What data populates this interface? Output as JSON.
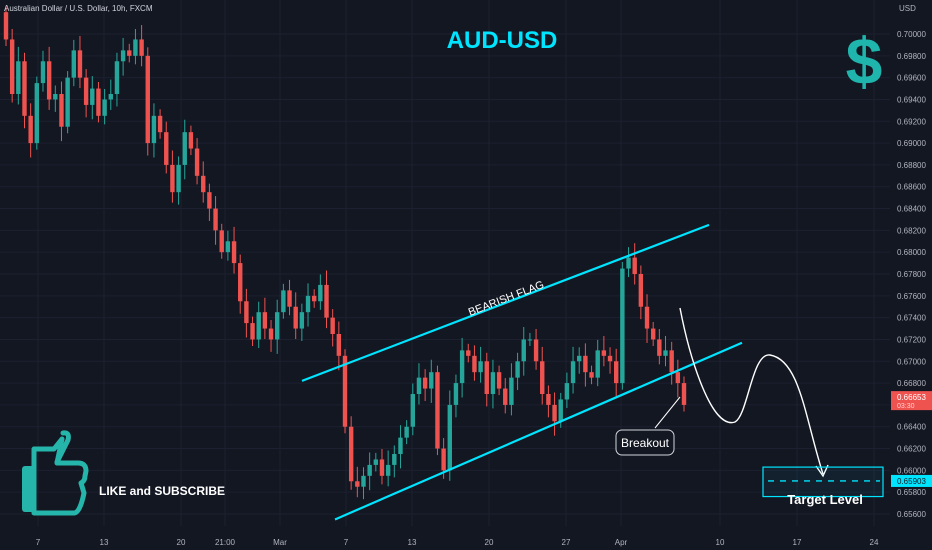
{
  "header": {
    "symbol_line": "Australian Dollar / U.S. Dollar, 10h, FXCM",
    "currency": "USD"
  },
  "idea": {
    "title": "AUD-USD",
    "flag_label": "BEARISH FLAG",
    "breakout_label": "Breakout",
    "target_label": "Target Level",
    "cta": "LIKE and SUBSCRIBE",
    "logo_icon": "dollar-icon",
    "cta_icon": "thumbs-up-icon"
  },
  "colors": {
    "background": "#131722",
    "bull": "#26a69a",
    "bear": "#ef5350",
    "accent": "#00e5ff",
    "text": "#b2b5be"
  },
  "price_badges": {
    "last_price": "0.66653",
    "countdown": "03:30",
    "target_price": "0.65903"
  },
  "chart_data": {
    "type": "candlestick",
    "symbol": "AUDUSD",
    "timeframe": "10h",
    "y_ticks": [
      "0.70000",
      "0.69800",
      "0.69600",
      "0.69400",
      "0.69200",
      "0.69000",
      "0.68800",
      "0.68600",
      "0.68400",
      "0.68200",
      "0.68000",
      "0.67800",
      "0.67600",
      "0.67400",
      "0.67200",
      "0.67000",
      "0.66800",
      "0.66600",
      "0.66400",
      "0.66200",
      "0.66000",
      "0.65800",
      "0.65600"
    ],
    "ylim": [
      0.6545,
      0.7027
    ],
    "x_ticks": [
      {
        "label": "7",
        "date": "2022-02-07"
      },
      {
        "label": "13",
        "date": "2022-02-13"
      },
      {
        "label": "20",
        "date": "2022-02-20"
      },
      {
        "label": "21:00",
        "date": "2022-02-24"
      },
      {
        "label": "Mar",
        "date": "2022-03-01"
      },
      {
        "label": "7",
        "date": "2022-03-07"
      },
      {
        "label": "13",
        "date": "2022-03-13"
      },
      {
        "label": "20",
        "date": "2022-03-20"
      },
      {
        "label": "27",
        "date": "2022-03-27"
      },
      {
        "label": "Apr",
        "date": "2022-04-01"
      },
      {
        "label": "10",
        "date": "2022-04-10"
      },
      {
        "label": "17",
        "date": "2022-04-17"
      },
      {
        "label": "24",
        "date": "2022-04-24"
      }
    ],
    "close_series": [
      0.6995,
      0.6945,
      0.6975,
      0.6925,
      0.69,
      0.6955,
      0.6975,
      0.694,
      0.6945,
      0.6915,
      0.696,
      0.6985,
      0.696,
      0.6935,
      0.695,
      0.6925,
      0.694,
      0.6945,
      0.6975,
      0.6985,
      0.698,
      0.6995,
      0.698,
      0.69,
      0.6925,
      0.691,
      0.688,
      0.6855,
      0.688,
      0.691,
      0.6895,
      0.687,
      0.6855,
      0.684,
      0.682,
      0.68,
      0.681,
      0.679,
      0.6755,
      0.6735,
      0.672,
      0.6745,
      0.673,
      0.672,
      0.6745,
      0.6765,
      0.675,
      0.673,
      0.6745,
      0.676,
      0.6755,
      0.677,
      0.674,
      0.6725,
      0.6705,
      0.664,
      0.659,
      0.6585,
      0.6595,
      0.6605,
      0.661,
      0.6595,
      0.6605,
      0.6615,
      0.663,
      0.664,
      0.667,
      0.6685,
      0.6675,
      0.669,
      0.662,
      0.66,
      0.666,
      0.668,
      0.671,
      0.6705,
      0.669,
      0.67,
      0.667,
      0.669,
      0.6675,
      0.666,
      0.6685,
      0.67,
      0.672,
      0.672,
      0.67,
      0.667,
      0.666,
      0.6645,
      0.6665,
      0.668,
      0.67,
      0.6705,
      0.669,
      0.6685,
      0.671,
      0.6705,
      0.67,
      0.668,
      0.6785,
      0.6795,
      0.678,
      0.675,
      0.673,
      0.672,
      0.6705,
      0.671,
      0.669,
      0.668,
      0.666
    ],
    "overlays": {
      "flag_upper_line": {
        "from": [
          "2022-03-03",
          0.6682
        ],
        "to": [
          "2022-04-09",
          0.6825
        ]
      },
      "flag_lower_line": {
        "from": [
          "2022-03-06",
          0.6555
        ],
        "to": [
          "2022-04-12",
          0.6717
        ]
      },
      "target_level": 0.65903,
      "target_box": [
        0.6576,
        0.6603
      ]
    }
  }
}
